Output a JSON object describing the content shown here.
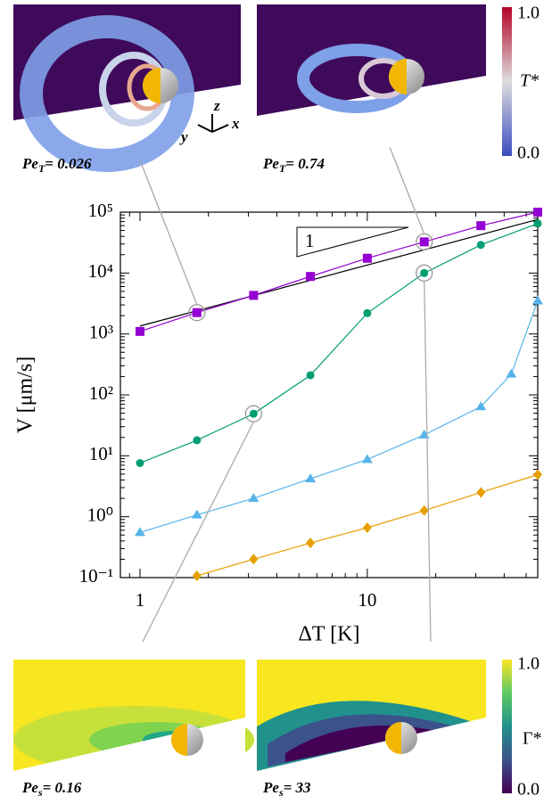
{
  "chart_data": {
    "type": "line",
    "xlabel": "ΔT [K]",
    "ylabel": "V [μm/s]",
    "xscale": "log",
    "yscale": "log",
    "xlim": [
      0.82,
      56.2
    ],
    "ylim": [
      0.1,
      100000
    ],
    "xticks": [
      1,
      10
    ],
    "yticks": [
      {
        "value": 0.1,
        "label": "10⁻¹"
      },
      {
        "value": 1,
        "label": "10⁰"
      },
      {
        "value": 10,
        "label": "10¹"
      },
      {
        "value": 100,
        "label": "10²"
      },
      {
        "value": 1000,
        "label": "10³"
      },
      {
        "value": 10000,
        "label": "10⁴"
      },
      {
        "value": 100000,
        "label": "10⁵"
      }
    ],
    "series": [
      {
        "color": "#000000",
        "x": [
          1,
          56.2
        ],
        "values": [
          1350,
          76000
        ]
      },
      {
        "color": "#9400d3",
        "marker": "square",
        "x": [
          1,
          1.78,
          3.16,
          5.62,
          10,
          17.8,
          31.6,
          56.2
        ],
        "values": [
          1100,
          2240,
          4300,
          8800,
          17500,
          32500,
          60000,
          100000
        ]
      },
      {
        "color": "#009e73",
        "marker": "circle",
        "x": [
          1,
          1.78,
          3.16,
          5.62,
          10,
          17.8,
          31.6,
          56.2
        ],
        "values": [
          7.6,
          18,
          49,
          210,
          2200,
          10000,
          29000,
          65000
        ]
      },
      {
        "color": "#56b4e9",
        "marker": "triangle",
        "x": [
          1,
          1.78,
          3.16,
          5.62,
          10,
          17.8,
          31.6,
          43,
          56.2
        ],
        "values": [
          0.55,
          1.07,
          2.0,
          4.2,
          8.7,
          22,
          64,
          220,
          3500
        ]
      },
      {
        "color": "#e69f00",
        "marker": "diamond",
        "x": [
          1.78,
          3.16,
          5.62,
          10,
          17.8,
          31.6,
          56.2
        ],
        "values": [
          0.107,
          0.2,
          0.37,
          0.66,
          1.26,
          2.5,
          4.9
        ]
      }
    ],
    "annotations": [
      {
        "text": "1"
      }
    ]
  },
  "insets": [
    {
      "symbol": "Pe",
      "subscript": "T",
      "value": "= 0.026"
    },
    {
      "symbol": "Pe",
      "subscript": "T",
      "value": "= 0.74"
    },
    {
      "symbol": "Pe",
      "subscript": "s",
      "value": "= 0.16"
    },
    {
      "symbol": "Pe",
      "subscript": "s",
      "value": "= 33"
    }
  ],
  "axes_triad": [
    "y",
    "z",
    "x"
  ],
  "colorbars": [
    {
      "max": "1.0",
      "min": "0.0",
      "label": "T*"
    },
    {
      "max": "1.0",
      "min": "0.0",
      "label": "Γ*"
    }
  ]
}
